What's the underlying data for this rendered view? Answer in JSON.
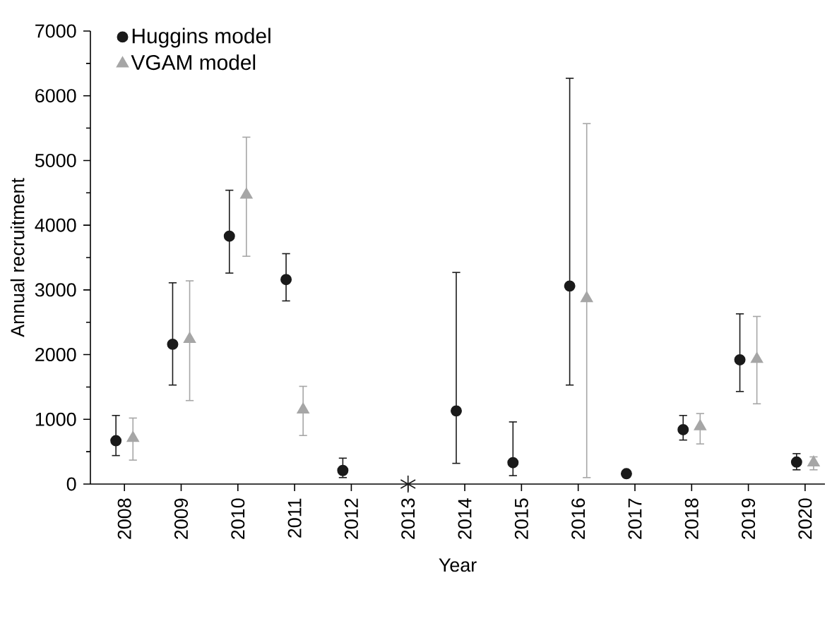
{
  "chart_data": {
    "type": "scatter",
    "xlabel": "Year",
    "ylabel": "Annual recruitment",
    "categories": [
      "2008",
      "2009",
      "2010",
      "2011",
      "2012",
      "2013",
      "2014",
      "2015",
      "2016",
      "2017",
      "2018",
      "2019",
      "2020"
    ],
    "ylim": [
      0,
      7000
    ],
    "yticks": [
      0,
      1000,
      2000,
      3000,
      4000,
      5000,
      6000,
      7000
    ],
    "grid": false,
    "legend": "top left",
    "series": [
      {
        "name": "Huggins model",
        "color": "#1a1a1a",
        "marker": "circle",
        "values": [
          670,
          2160,
          3830,
          3160,
          210,
          null,
          1130,
          330,
          3060,
          160,
          840,
          1920,
          340
        ],
        "errors": [
          [
            440,
            1060
          ],
          [
            1530,
            3110
          ],
          [
            3260,
            4540
          ],
          [
            2830,
            3560
          ],
          [
            100,
            400
          ],
          null,
          [
            320,
            3270
          ],
          [
            130,
            960
          ],
          [
            1530,
            6270
          ],
          null,
          [
            680,
            1060
          ],
          [
            1430,
            2630
          ],
          [
            220,
            470
          ]
        ]
      },
      {
        "name": "VGAM model",
        "color": "#a6a6a6",
        "marker": "triangle",
        "values": [
          710,
          2240,
          4470,
          1150,
          null,
          null,
          null,
          null,
          2870,
          null,
          890,
          1930,
          330
        ],
        "errors": [
          [
            370,
            1020
          ],
          [
            1290,
            3140
          ],
          [
            3520,
            5360
          ],
          [
            750,
            1510
          ],
          null,
          null,
          null,
          null,
          [
            100,
            5570
          ],
          null,
          [
            620,
            1090
          ],
          [
            1240,
            2590
          ],
          [
            220,
            420
          ]
        ]
      },
      {
        "color": "#1a1a1a",
        "marker": "cross",
        "values": [
          null,
          null,
          null,
          null,
          null,
          0,
          null,
          null,
          null,
          null,
          null,
          null,
          null
        ]
      }
    ]
  }
}
